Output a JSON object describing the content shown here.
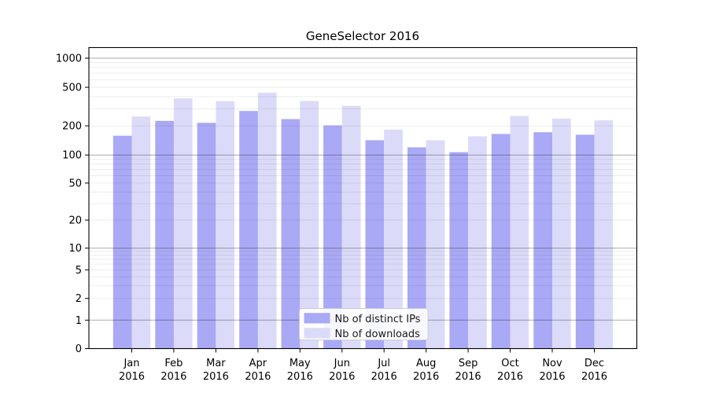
{
  "chart_data": {
    "type": "bar",
    "title": "GeneSelector 2016",
    "categories": [
      "Jan 2016",
      "Feb 2016",
      "Mar 2016",
      "Apr 2016",
      "May 2016",
      "Jun 2016",
      "Jul 2016",
      "Aug 2016",
      "Sep 2016",
      "Oct 2016",
      "Nov 2016",
      "Dec 2016"
    ],
    "series": [
      {
        "name": "Nb of distinct IPs",
        "color": "#a9a9f5",
        "values": [
          158,
          225,
          215,
          285,
          235,
          202,
          142,
          120,
          107,
          165,
          172,
          162
        ]
      },
      {
        "name": "Nb of downloads",
        "color": "#dbdbf9",
        "values": [
          250,
          385,
          360,
          440,
          362,
          322,
          183,
          142,
          156,
          253,
          238,
          228
        ]
      }
    ],
    "yscale": "symlog",
    "yticks": [
      0,
      1,
      2,
      5,
      10,
      20,
      50,
      100,
      200,
      500,
      1000
    ],
    "ylim": [
      0,
      1300
    ],
    "xlabel": "",
    "ylabel": "",
    "grid": true,
    "legend_position": "lower center"
  }
}
